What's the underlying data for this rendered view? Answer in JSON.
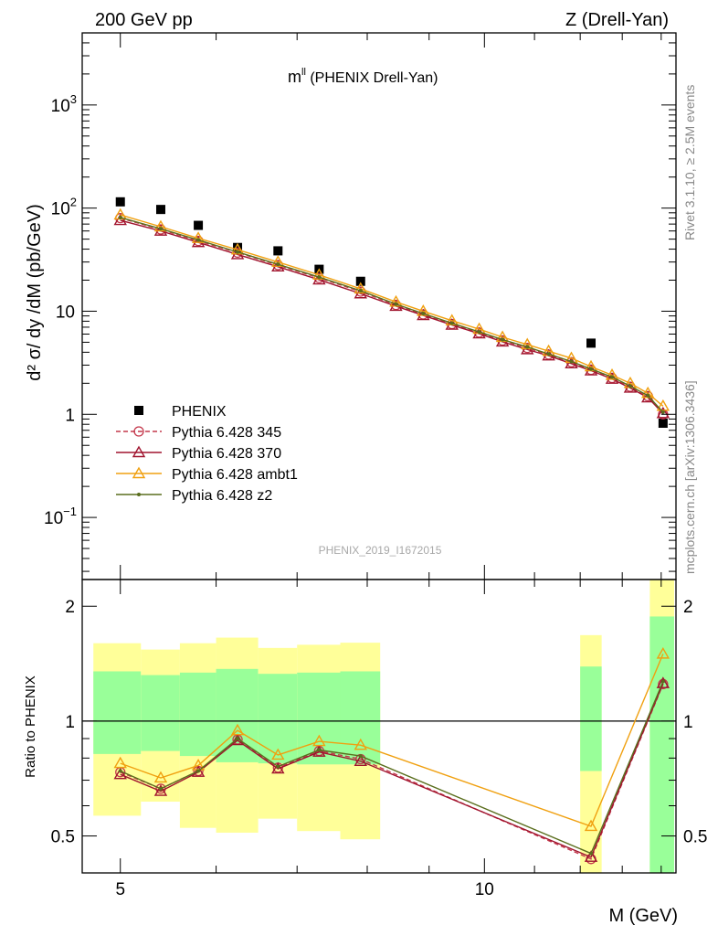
{
  "header": {
    "left": "200 GeV pp",
    "right": "Z (Drell-Yan)"
  },
  "side": {
    "rivet": "Rivet 3.1.10, ≥ 2.5M events",
    "mcplots": "mcplots.cern.ch [arXiv:1306.3436]"
  },
  "chart_data": [
    {
      "type": "scatter",
      "title_main": "m",
      "title_sup": "ll",
      "title_rest": " (PHENIX Drell-Yan)",
      "ylabel": "d² σ/ dy /dM (pb/GeV)",
      "analysis_label": "PHENIX_2019_I1672015",
      "y_scale": "log",
      "ylim": [
        0.025,
        5000
      ],
      "xlim": [
        4.65,
        14.4
      ],
      "y_ticks": [
        {
          "v": 0.1,
          "base": "10",
          "exp": "−1"
        },
        {
          "v": 1,
          "text": "1"
        },
        {
          "v": 10,
          "text": "10"
        },
        {
          "v": 100,
          "base": "10",
          "exp": "2"
        },
        {
          "v": 1000,
          "base": "10",
          "exp": "3"
        }
      ],
      "legend_position": "bottom-left",
      "series": [
        {
          "name": "PHENIX",
          "color": "#000000",
          "marker": "square",
          "line": false,
          "x": [
            5.0,
            5.4,
            5.8,
            6.25,
            6.75,
            7.3,
            7.9,
            12.25,
            14.05
          ],
          "y": [
            115,
            97,
            68,
            41.5,
            38.5,
            25.5,
            19.5,
            4.9,
            0.82
          ]
        },
        {
          "name": "Pythia 6.428 345",
          "color": "#c4384c",
          "marker": "circle",
          "dash": "5,3",
          "x": [
            5.0,
            5.4,
            5.8,
            6.25,
            6.75,
            7.3,
            7.9,
            8.45,
            8.9,
            9.4,
            9.9,
            10.35,
            10.85,
            11.3,
            11.8,
            12.25,
            12.75,
            13.2,
            13.65,
            14.05
          ],
          "y": [
            80,
            62,
            48,
            37,
            28,
            21,
            15.5,
            11.5,
            9.3,
            7.5,
            6.2,
            5.2,
            4.4,
            3.8,
            3.2,
            2.7,
            2.25,
            1.85,
            1.5,
            1.0
          ]
        },
        {
          "name": "Pythia 6.428 370",
          "color": "#a0142e",
          "marker": "triangle",
          "x": [
            5.0,
            5.4,
            5.8,
            6.25,
            6.75,
            7.3,
            7.9,
            8.45,
            8.9,
            9.4,
            9.9,
            10.35,
            10.85,
            11.3,
            11.8,
            12.25,
            12.75,
            13.2,
            13.65,
            14.05
          ],
          "y": [
            76,
            60,
            46.5,
            35.5,
            27,
            20.2,
            14.8,
            11.2,
            9.1,
            7.35,
            6.05,
            5.05,
            4.25,
            3.7,
            3.1,
            2.65,
            2.2,
            1.8,
            1.45,
            1.02
          ]
        },
        {
          "name": "Pythia 6.428 ambt1",
          "color": "#f0a010",
          "marker": "triangle",
          "x": [
            5.0,
            5.4,
            5.8,
            6.25,
            6.75,
            7.3,
            7.9,
            8.45,
            8.9,
            9.4,
            9.9,
            10.35,
            10.85,
            11.3,
            11.8,
            12.25,
            12.75,
            13.2,
            13.65,
            14.05
          ],
          "y": [
            86,
            66,
            51,
            39.5,
            30,
            22.5,
            16.5,
            12.3,
            10.0,
            8.1,
            6.7,
            5.6,
            4.75,
            4.1,
            3.5,
            2.9,
            2.4,
            2.0,
            1.6,
            1.2
          ]
        },
        {
          "name": "Pythia 6.428 z2",
          "color": "#5a6e1e",
          "marker": "dot",
          "x": [
            5.0,
            5.4,
            5.8,
            6.25,
            6.75,
            7.3,
            7.9,
            8.45,
            8.9,
            9.4,
            9.9,
            10.35,
            10.85,
            11.3,
            11.8,
            12.25,
            12.75,
            13.2,
            13.65,
            14.05
          ],
          "y": [
            81,
            63,
            49,
            37.5,
            28.5,
            21.4,
            15.8,
            11.7,
            9.5,
            7.65,
            6.3,
            5.3,
            4.5,
            3.85,
            3.25,
            2.75,
            2.3,
            1.88,
            1.52,
            1.05
          ]
        }
      ]
    },
    {
      "type": "line",
      "ylabel": "Ratio to PHENIX",
      "xlabel": "M (GeV)",
      "x_scale": "log",
      "y_scale": "log",
      "ylim": [
        0.4,
        2.35
      ],
      "xlim": [
        4.65,
        14.4
      ],
      "x_ticks": [
        {
          "v": 5,
          "text": "5"
        },
        {
          "v": 10,
          "text": "10"
        }
      ],
      "y_ticks": [
        {
          "v": 0.5,
          "text": "0.5"
        },
        {
          "v": 1,
          "text": "1"
        },
        {
          "v": 2,
          "text": "2"
        }
      ],
      "reference_line": 1,
      "bands": [
        {
          "x0": 4.75,
          "x1": 5.2,
          "yellow": [
            0.565,
            1.6
          ],
          "green": [
            0.82,
            1.35
          ]
        },
        {
          "x0": 5.2,
          "x1": 5.6,
          "yellow": [
            0.615,
            1.54
          ],
          "green": [
            0.835,
            1.32
          ]
        },
        {
          "x0": 5.6,
          "x1": 6.0,
          "yellow": [
            0.525,
            1.6
          ],
          "green": [
            0.81,
            1.34
          ]
        },
        {
          "x0": 6.0,
          "x1": 6.5,
          "yellow": [
            0.51,
            1.655
          ],
          "green": [
            0.78,
            1.37
          ]
        },
        {
          "x0": 6.5,
          "x1": 7.0,
          "yellow": [
            0.555,
            1.555
          ],
          "green": [
            0.775,
            1.33
          ]
        },
        {
          "x0": 7.0,
          "x1": 7.6,
          "yellow": [
            0.515,
            1.585
          ],
          "green": [
            0.77,
            1.34
          ]
        },
        {
          "x0": 7.6,
          "x1": 8.2,
          "yellow": [
            0.49,
            1.605
          ],
          "green": [
            0.77,
            1.35
          ]
        },
        {
          "x0": 12.0,
          "x1": 12.5,
          "yellow": [
            0.4,
            1.68
          ],
          "green": [
            0.74,
            1.39
          ]
        },
        {
          "x0": 13.7,
          "x1": 14.35,
          "yellow": [
            0.4,
            2.35
          ],
          "green": [
            0.4,
            1.88
          ]
        }
      ],
      "series": [
        {
          "name": "Pythia 6.428 345",
          "x": [
            5.0,
            5.4,
            5.8,
            6.25,
            6.75,
            7.3,
            7.9,
            12.25,
            14.05
          ],
          "y": [
            0.735,
            0.665,
            0.74,
            0.895,
            0.755,
            0.835,
            0.795,
            0.435,
            1.25
          ]
        },
        {
          "name": "Pythia 6.428 370",
          "x": [
            5.0,
            5.4,
            5.8,
            6.25,
            6.75,
            7.3,
            7.9,
            12.25,
            14.05
          ],
          "y": [
            0.725,
            0.655,
            0.735,
            0.89,
            0.75,
            0.83,
            0.785,
            0.44,
            1.255
          ]
        },
        {
          "name": "Pythia 6.428 ambt1",
          "x": [
            5.0,
            5.4,
            5.8,
            6.25,
            6.75,
            7.3,
            7.9,
            12.25,
            14.05
          ],
          "y": [
            0.775,
            0.71,
            0.765,
            0.945,
            0.815,
            0.885,
            0.865,
            0.53,
            1.5
          ]
        },
        {
          "name": "Pythia 6.428 z2",
          "x": [
            5.0,
            5.4,
            5.8,
            6.25,
            6.75,
            7.3,
            7.9,
            12.25,
            14.05
          ],
          "y": [
            0.74,
            0.665,
            0.74,
            0.9,
            0.76,
            0.84,
            0.81,
            0.45,
            1.27
          ]
        }
      ]
    }
  ]
}
